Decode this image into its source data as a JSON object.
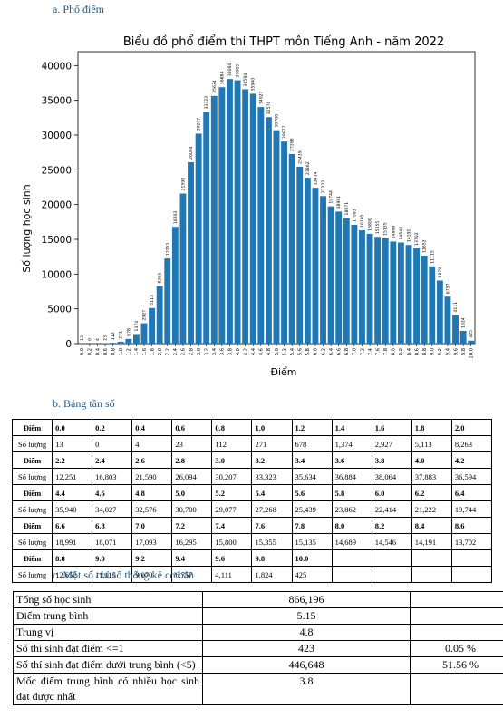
{
  "sections": {
    "a": "a. Phổ điểm",
    "b": "b. Bảng tần số",
    "c": "c. Một số chỉ số thống kê cơ bản"
  },
  "chart_data": {
    "type": "bar",
    "title": "Biểu đồ phổ điểm thi THPT môn Tiếng Anh - năm 2022",
    "xlabel": "Điểm",
    "ylabel": "Số lượng học sinh",
    "ylim": [
      0,
      42000
    ],
    "yticks": [
      0,
      5000,
      10000,
      15000,
      20000,
      25000,
      30000,
      35000,
      40000
    ],
    "bar_color": "#1f77b4",
    "categories": [
      "0.0",
      "0.2",
      "0.4",
      "0.6",
      "0.8",
      "1.0",
      "1.2",
      "1.4",
      "1.6",
      "1.8",
      "2.0",
      "2.2",
      "2.4",
      "2.6",
      "2.8",
      "3.0",
      "3.2",
      "3.4",
      "3.6",
      "3.8",
      "4.0",
      "4.2",
      "4.4",
      "4.6",
      "4.8",
      "5.0",
      "5.2",
      "5.4",
      "5.6",
      "5.8",
      "6.0",
      "6.2",
      "6.4",
      "6.6",
      "6.8",
      "7.0",
      "7.2",
      "7.4",
      "7.6",
      "7.8",
      "8.0",
      "8.2",
      "8.4",
      "8.6",
      "8.8",
      "9.0",
      "9.2",
      "9.4",
      "9.6",
      "9.8",
      "10.0"
    ],
    "values": [
      13,
      0,
      4,
      23,
      112,
      271,
      678,
      1374,
      2927,
      5113,
      8263,
      12251,
      16803,
      21590,
      26094,
      30207,
      33323,
      35634,
      36884,
      38064,
      37883,
      36594,
      35940,
      34027,
      32576,
      30700,
      29077,
      27268,
      25439,
      23862,
      22414,
      21222,
      19744,
      18991,
      18071,
      17093,
      16295,
      15800,
      15355,
      15135,
      14689,
      14546,
      14191,
      13702,
      12652,
      11115,
      9070,
      6757,
      4111,
      1824,
      425
    ]
  },
  "freq_table": {
    "header_label": "Điểm",
    "count_label": "Số lượng",
    "rows": [
      {
        "points": [
          "0.0",
          "0.2",
          "0.4",
          "0.6",
          "0.8",
          "1.0",
          "1.2",
          "1.4",
          "1.6",
          "1.8",
          "2.0"
        ],
        "counts": [
          "13",
          "0",
          "4",
          "23",
          "112",
          "271",
          "678",
          "1,374",
          "2,927",
          "5,113",
          "8,263"
        ]
      },
      {
        "points": [
          "2.2",
          "2.4",
          "2.6",
          "2.8",
          "3.0",
          "3.2",
          "3.4",
          "3.6",
          "3.8",
          "4.0",
          "4.2"
        ],
        "counts": [
          "12,251",
          "16,803",
          "21,590",
          "26,094",
          "30,207",
          "33,323",
          "35,634",
          "36,884",
          "38,064",
          "37,883",
          "36,594"
        ]
      },
      {
        "points": [
          "4.4",
          "4.6",
          "4.8",
          "5.0",
          "5.2",
          "5.4",
          "5.6",
          "5.8",
          "6.0",
          "6.2",
          "6.4"
        ],
        "counts": [
          "35,940",
          "34,027",
          "32,576",
          "30,700",
          "29,077",
          "27,268",
          "25,439",
          "23,862",
          "22,414",
          "21,222",
          "19,744"
        ]
      },
      {
        "points": [
          "6.6",
          "6.8",
          "7.0",
          "7.2",
          "7.4",
          "7.6",
          "7.8",
          "8.0",
          "8.2",
          "8.4",
          "8.6"
        ],
        "counts": [
          "18,991",
          "18,071",
          "17,093",
          "16,295",
          "15,800",
          "15,355",
          "15,135",
          "14,689",
          "14,546",
          "14,191",
          "13,702"
        ]
      },
      {
        "points": [
          "8.8",
          "9.0",
          "9.2",
          "9.4",
          "9.6",
          "9.8",
          "10.0",
          "",
          "",
          "",
          ""
        ],
        "counts": [
          "12,652",
          "11,115",
          "9,070",
          "6,757",
          "4,111",
          "1,824",
          "425",
          "",
          "",
          "",
          ""
        ]
      }
    ]
  },
  "stats_table": [
    {
      "label": "Tổng số học sinh",
      "value": "866,196",
      "extra": ""
    },
    {
      "label": "Điểm trung bình",
      "value": "5.15",
      "extra": ""
    },
    {
      "label": "Trung vị",
      "value": "4.8",
      "extra": ""
    },
    {
      "label": "Số thí sinh đạt điểm <=1",
      "value": "423",
      "extra": "0.05 %"
    },
    {
      "label": "Số thí sinh đạt điểm dưới trung bình (<5)",
      "value": "446,648",
      "extra": "51.56 %"
    },
    {
      "label": "Mốc điểm trung bình có nhiều học sinh đạt được nhất",
      "value": "3.8",
      "extra": ""
    }
  ]
}
